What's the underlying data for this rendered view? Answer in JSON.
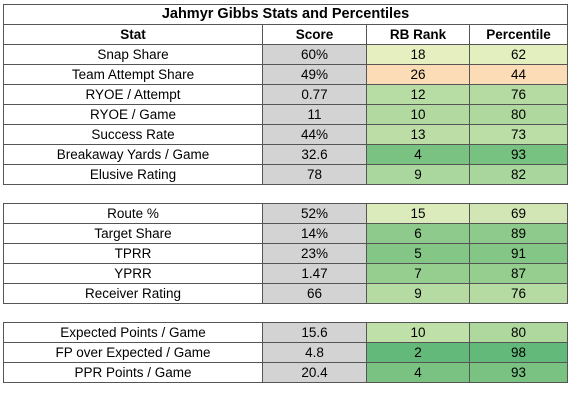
{
  "title": "Jahmyr Gibbs Stats and Percentiles",
  "headers": {
    "stat": "Stat",
    "score": "Score",
    "rank": "RB Rank",
    "percentile": "Percentile"
  },
  "sections": [
    {
      "rows": [
        {
          "stat": "Snap Share",
          "score": "60%",
          "rank": "18",
          "percentile": "62",
          "rank_color": "#e5efc0",
          "pct_color": "#e4efbf"
        },
        {
          "stat": "Team Attempt Share",
          "score": "49%",
          "rank": "26",
          "percentile": "44",
          "rank_color": "#fbdcb6",
          "pct_color": "#fbdcb6"
        },
        {
          "stat": "RYOE / Attempt",
          "score": "0.77",
          "rank": "12",
          "percentile": "76",
          "rank_color": "#b8dda4",
          "pct_color": "#b5dba2"
        },
        {
          "stat": "RYOE / Game",
          "score": "11",
          "rank": "10",
          "percentile": "80",
          "rank_color": "#b1d9a0",
          "pct_color": "#aed89e"
        },
        {
          "stat": "Success Rate",
          "score": "44%",
          "rank": "13",
          "percentile": "73",
          "rank_color": "#bcdea6",
          "pct_color": "#bbdea6"
        },
        {
          "stat": "Breakaway Yards / Game",
          "score": "32.6",
          "rank": "4",
          "percentile": "93",
          "rank_color": "#79c281",
          "pct_color": "#77c281"
        },
        {
          "stat": "Elusive Rating",
          "score": "78",
          "rank": "9",
          "percentile": "82",
          "rank_color": "#aad79d",
          "pct_color": "#a8d69c"
        }
      ]
    },
    {
      "rows": [
        {
          "stat": "Route %",
          "score": "52%",
          "rank": "15",
          "percentile": "69",
          "rank_color": "#dcebbc",
          "pct_color": "#d2e6b5"
        },
        {
          "stat": "Target Share",
          "score": "14%",
          "rank": "6",
          "percentile": "89",
          "rank_color": "#8dca8b",
          "pct_color": "#8dca8b"
        },
        {
          "stat": "TPRR",
          "score": "23%",
          "rank": "5",
          "percentile": "91",
          "rank_color": "#84c686",
          "pct_color": "#84c686"
        },
        {
          "stat": "YPRR",
          "score": "1.47",
          "rank": "7",
          "percentile": "87",
          "rank_color": "#96ce8f",
          "pct_color": "#96ce8f"
        },
        {
          "stat": "Receiver Rating",
          "score": "66",
          "rank": "9",
          "percentile": "76",
          "rank_color": "#b5dba2",
          "pct_color": "#b5dba2"
        }
      ]
    },
    {
      "rows": [
        {
          "stat": "Expected Points / Game",
          "score": "15.6",
          "rank": "10",
          "percentile": "80",
          "rank_color": "#bfe0a8",
          "pct_color": "#aed89e"
        },
        {
          "stat": "FP over Expected / Game",
          "score": "4.8",
          "rank": "2",
          "percentile": "98",
          "rank_color": "#63b97a",
          "pct_color": "#63b97a"
        },
        {
          "stat": "PPR Points / Game",
          "score": "20.4",
          "rank": "4",
          "percentile": "93",
          "rank_color": "#79c281",
          "pct_color": "#79c281"
        }
      ]
    }
  ]
}
